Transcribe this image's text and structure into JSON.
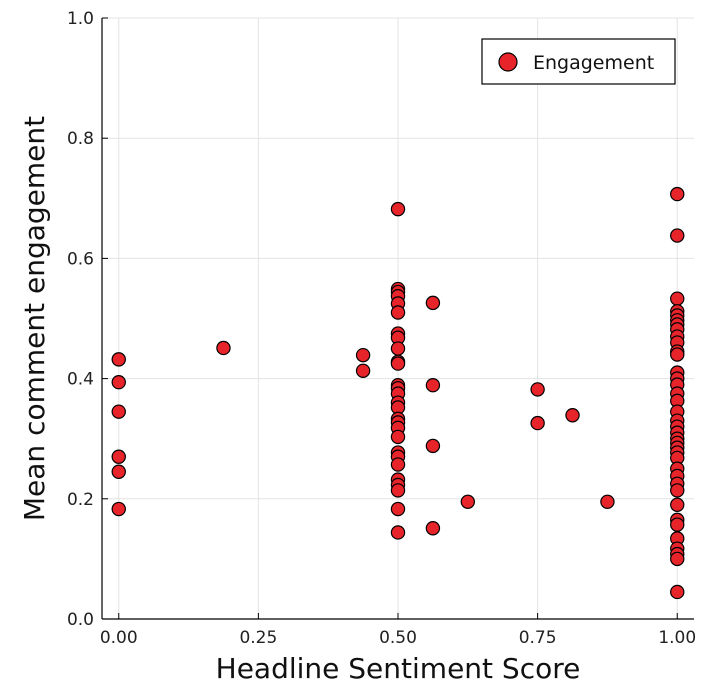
{
  "chart_data": {
    "type": "scatter",
    "title": "",
    "xlabel": "Headline Sentiment Score",
    "ylabel": "Mean comment engagement",
    "xlim": [
      -0.03,
      1.03
    ],
    "ylim": [
      0.0,
      1.0
    ],
    "xticks": [
      0.0,
      0.25,
      0.5,
      0.75,
      1.0
    ],
    "xtick_labels": [
      "0.00",
      "0.25",
      "0.50",
      "0.75",
      "1.00"
    ],
    "yticks": [
      0.0,
      0.2,
      0.4,
      0.6,
      0.8,
      1.0
    ],
    "ytick_labels": [
      "0.0",
      "0.2",
      "0.4",
      "0.6",
      "0.8",
      "1.0"
    ],
    "grid": true,
    "legend": {
      "position": "top-right",
      "entries": [
        "Engagement"
      ]
    },
    "series": [
      {
        "name": "Engagement",
        "color": "#e8242b",
        "points": [
          [
            0.0,
            0.432
          ],
          [
            0.0,
            0.394
          ],
          [
            0.0,
            0.345
          ],
          [
            0.0,
            0.27
          ],
          [
            0.0,
            0.245
          ],
          [
            0.0,
            0.183
          ],
          [
            0.1875,
            0.451
          ],
          [
            0.4375,
            0.439
          ],
          [
            0.4375,
            0.413
          ],
          [
            0.5,
            0.682
          ],
          [
            0.5,
            0.549
          ],
          [
            0.5,
            0.544
          ],
          [
            0.5,
            0.537
          ],
          [
            0.5,
            0.525
          ],
          [
            0.5,
            0.51
          ],
          [
            0.5,
            0.475
          ],
          [
            0.5,
            0.468
          ],
          [
            0.5,
            0.45
          ],
          [
            0.5,
            0.428
          ],
          [
            0.5,
            0.425
          ],
          [
            0.5,
            0.389
          ],
          [
            0.5,
            0.384
          ],
          [
            0.5,
            0.375
          ],
          [
            0.5,
            0.36
          ],
          [
            0.5,
            0.352
          ],
          [
            0.5,
            0.333
          ],
          [
            0.5,
            0.327
          ],
          [
            0.5,
            0.318
          ],
          [
            0.5,
            0.303
          ],
          [
            0.5,
            0.277
          ],
          [
            0.5,
            0.27
          ],
          [
            0.5,
            0.257
          ],
          [
            0.5,
            0.232
          ],
          [
            0.5,
            0.223
          ],
          [
            0.5,
            0.214
          ],
          [
            0.5,
            0.183
          ],
          [
            0.5,
            0.144
          ],
          [
            0.5625,
            0.526
          ],
          [
            0.5625,
            0.389
          ],
          [
            0.5625,
            0.288
          ],
          [
            0.5625,
            0.151
          ],
          [
            0.625,
            0.195
          ],
          [
            0.75,
            0.382
          ],
          [
            0.75,
            0.326
          ],
          [
            0.8125,
            0.339
          ],
          [
            0.875,
            0.195
          ],
          [
            1.0,
            0.707
          ],
          [
            1.0,
            0.638
          ],
          [
            1.0,
            0.533
          ],
          [
            1.0,
            0.512
          ],
          [
            1.0,
            0.505
          ],
          [
            1.0,
            0.497
          ],
          [
            1.0,
            0.49
          ],
          [
            1.0,
            0.482
          ],
          [
            1.0,
            0.47
          ],
          [
            1.0,
            0.46
          ],
          [
            1.0,
            0.445
          ],
          [
            1.0,
            0.44
          ],
          [
            1.0,
            0.41
          ],
          [
            1.0,
            0.4
          ],
          [
            1.0,
            0.39
          ],
          [
            1.0,
            0.375
          ],
          [
            1.0,
            0.363
          ],
          [
            1.0,
            0.345
          ],
          [
            1.0,
            0.33
          ],
          [
            1.0,
            0.32
          ],
          [
            1.0,
            0.31
          ],
          [
            1.0,
            0.3
          ],
          [
            1.0,
            0.293
          ],
          [
            1.0,
            0.285
          ],
          [
            1.0,
            0.277
          ],
          [
            1.0,
            0.268
          ],
          [
            1.0,
            0.25
          ],
          [
            1.0,
            0.238
          ],
          [
            1.0,
            0.225
          ],
          [
            1.0,
            0.214
          ],
          [
            1.0,
            0.19
          ],
          [
            1.0,
            0.165
          ],
          [
            1.0,
            0.157
          ],
          [
            1.0,
            0.134
          ],
          [
            1.0,
            0.117
          ],
          [
            1.0,
            0.108
          ],
          [
            1.0,
            0.1
          ],
          [
            1.0,
            0.045
          ]
        ]
      }
    ]
  }
}
